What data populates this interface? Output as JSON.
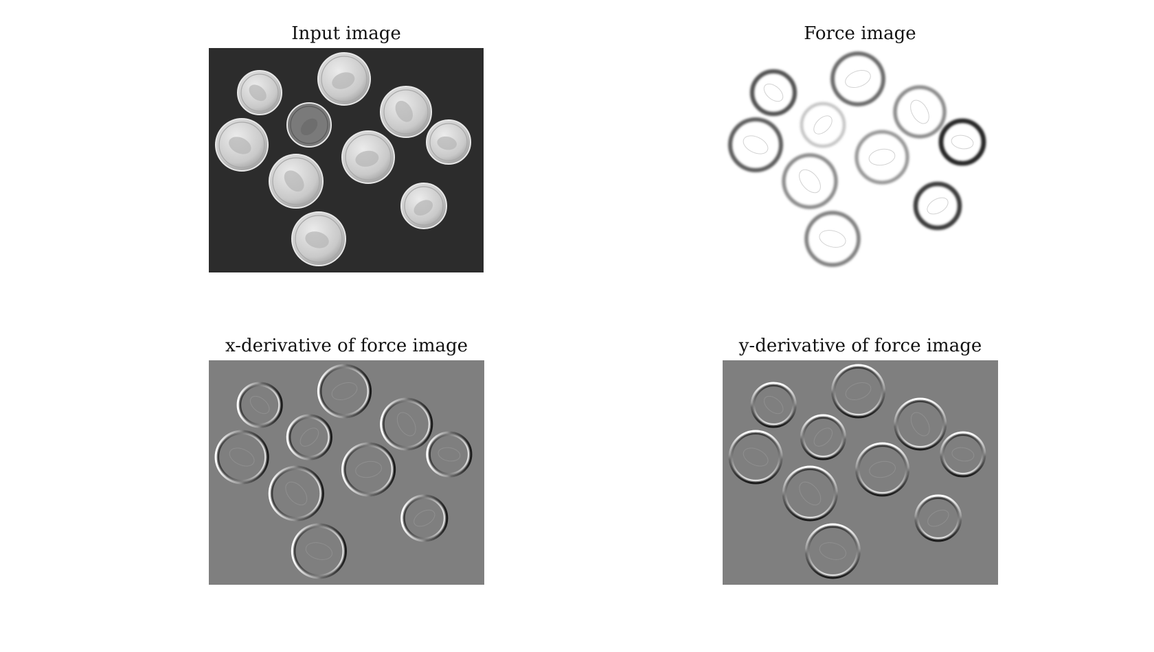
{
  "panels": [
    {
      "id": "input",
      "title": "Input image",
      "mode": "photo",
      "background": "#2c2c2c"
    },
    {
      "id": "force",
      "title": "Force image",
      "mode": "force",
      "background": "#ffffff"
    },
    {
      "id": "dx",
      "title": "x-derivative of force image",
      "mode": "dx",
      "background": "#7f7f7f"
    },
    {
      "id": "dy",
      "title": "y-derivative of force image",
      "mode": "dy",
      "background": "#7f7f7f"
    }
  ],
  "coins_visible": 10,
  "colors": {
    "page": "#ffffff",
    "text": "#111111",
    "coin_face": "#c9c9c9",
    "coin_dark": "#8a8a8a",
    "gradient_gray": "#7f7f7f"
  }
}
